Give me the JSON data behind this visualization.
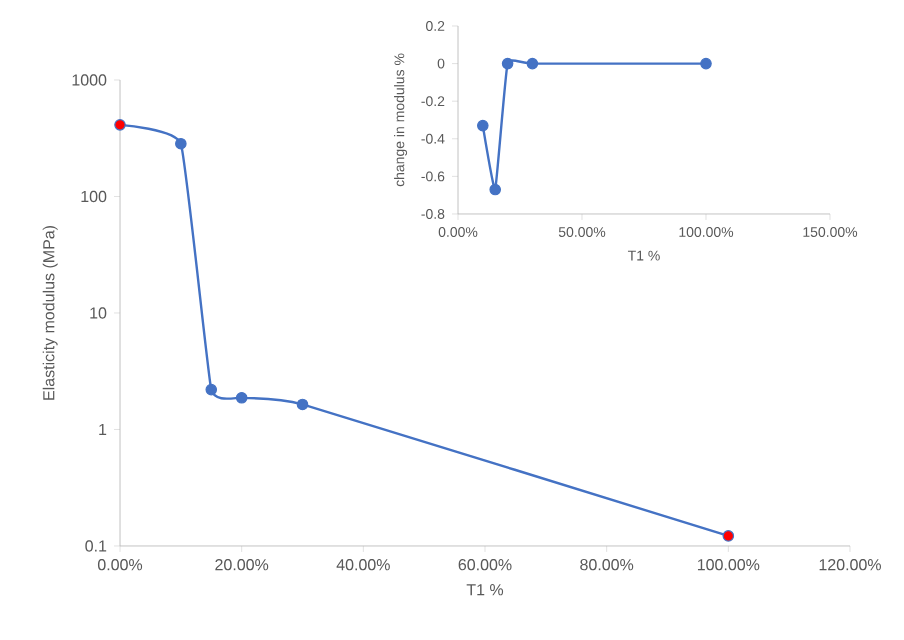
{
  "chart_data": [
    {
      "type": "line",
      "xlabel": "T1 %",
      "ylabel": "Elasticity modulus (MPa)",
      "log": "y",
      "marker": "circle",
      "line_style": "solid",
      "grid": false,
      "x": [
        0,
        0.1,
        0.15,
        0.2,
        0.3,
        1.0
      ],
      "series": [
        {
          "color": "#4472c4",
          "values": [
            412,
            284,
            2.2,
            1.87,
            1.64,
            0.122
          ],
          "colors": [
            "#ff0000",
            "#4472c4",
            "#4472c4",
            "#4472c4",
            "#4472c4",
            "#ff0000"
          ]
        }
      ],
      "xlim": [
        0,
        1.2
      ],
      "xticks": [
        {
          "value": 0,
          "label": "0.00%"
        },
        {
          "value": 0.2,
          "label": "20.00%"
        },
        {
          "value": 0.4,
          "label": "40.00%"
        },
        {
          "value": 0.6,
          "label": "60.00%"
        },
        {
          "value": 0.8,
          "label": "80.00%"
        },
        {
          "value": 1.0,
          "label": "100.00%"
        },
        {
          "value": 1.2,
          "label": "120.00%"
        }
      ],
      "ylim": [
        0.1,
        1000
      ],
      "yticks": [
        0.1,
        1,
        10,
        100,
        1000
      ]
    },
    {
      "type": "line",
      "xlabel": "T1 %",
      "ylabel": "change in modulus %",
      "marker": "circle",
      "line_style": "solid",
      "grid": false,
      "x": [
        0.1,
        0.15,
        0.2,
        0.3,
        1.0
      ],
      "series": [
        {
          "color": "#4472c4",
          "values": [
            -0.33,
            -0.67,
            0,
            0,
            0
          ]
        }
      ],
      "xlim": [
        0,
        1.5
      ],
      "xticks": [
        {
          "value": 0,
          "label": "0.00%"
        },
        {
          "value": 0.5,
          "label": "50.00%"
        },
        {
          "value": 1.0,
          "label": "100.00%"
        },
        {
          "value": 1.5,
          "label": "150.00%"
        }
      ],
      "ylim": [
        -0.8,
        0.2
      ],
      "yticks": [
        -0.8,
        -0.6,
        -0.4,
        -0.2,
        0,
        0.2
      ]
    }
  ]
}
